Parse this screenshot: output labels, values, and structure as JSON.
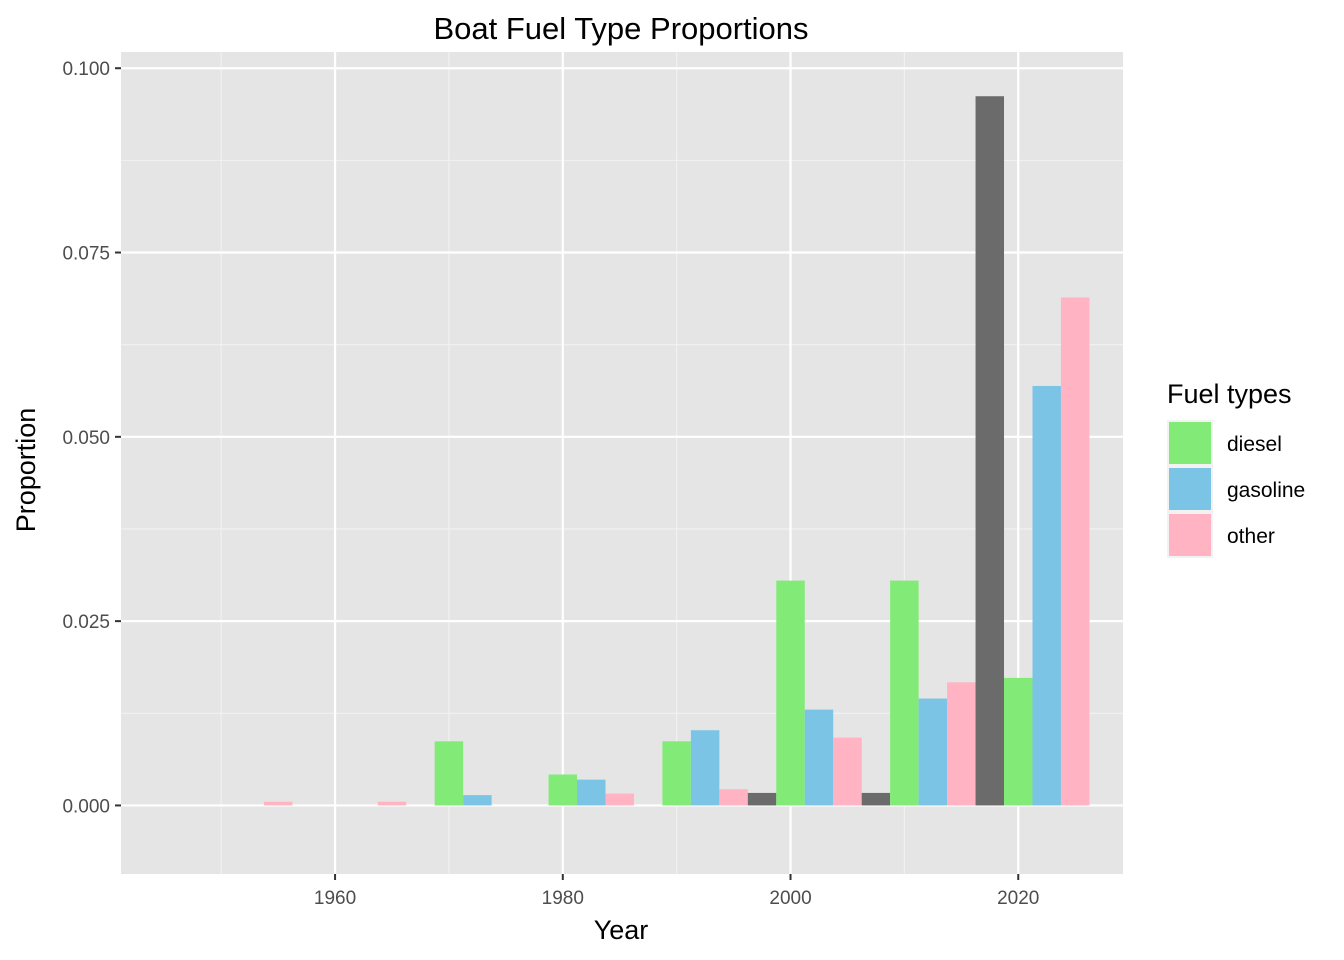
{
  "chart_data": {
    "type": "bar",
    "title": "Boat Fuel Type Proportions",
    "xlabel": "Year",
    "ylabel": "Proportion",
    "xlim": [
      1941.2,
      1929.2
    ],
    "ylim": [
      -0.0093,
      0.1022
    ],
    "x_ticks": [
      "1960",
      "1980",
      "2000",
      "2020"
    ],
    "x_tick_values": [
      1960,
      1980,
      2000,
      2020
    ],
    "y_ticks": [
      "0.000",
      "0.025",
      "0.050",
      "0.075",
      "0.100"
    ],
    "y_tick_values": [
      0,
      0.025,
      0.05,
      0.075,
      0.1
    ],
    "grid": true,
    "legend": {
      "title": "Fuel types",
      "position": "right",
      "entries": [
        {
          "label": "diesel",
          "color": "#82EB78"
        },
        {
          "label": "gasoline",
          "color": "#7BC4E5"
        },
        {
          "label": "other",
          "color": "#FFB3C3"
        }
      ]
    },
    "na_color": "#6B6B6B",
    "bars": [
      {
        "x": 1955.0,
        "value": 0.0005,
        "fuel": "other"
      },
      {
        "x": 1965.0,
        "value": 0.0005,
        "fuel": "other"
      },
      {
        "x": 1970.0,
        "value": 0.0087,
        "fuel": "diesel"
      },
      {
        "x": 1972.5,
        "value": 0.0014,
        "fuel": "gasoline"
      },
      {
        "x": 1980.0,
        "value": 0.0042,
        "fuel": "diesel"
      },
      {
        "x": 1982.5,
        "value": 0.0035,
        "fuel": "gasoline"
      },
      {
        "x": 1985.0,
        "value": 0.0016,
        "fuel": "other"
      },
      {
        "x": 1990.0,
        "value": 0.0087,
        "fuel": "diesel"
      },
      {
        "x": 1992.5,
        "value": 0.0102,
        "fuel": "gasoline"
      },
      {
        "x": 1995.0,
        "value": 0.0022,
        "fuel": "other"
      },
      {
        "x": 1997.5,
        "value": 0.0017,
        "fuel": "NA"
      },
      {
        "x": 2000.0,
        "value": 0.0305,
        "fuel": "diesel"
      },
      {
        "x": 2002.5,
        "value": 0.013,
        "fuel": "gasoline"
      },
      {
        "x": 2005.0,
        "value": 0.0092,
        "fuel": "other"
      },
      {
        "x": 2007.5,
        "value": 0.0017,
        "fuel": "NA"
      },
      {
        "x": 2010.0,
        "value": 0.0305,
        "fuel": "diesel"
      },
      {
        "x": 2012.5,
        "value": 0.0145,
        "fuel": "gasoline"
      },
      {
        "x": 2015.0,
        "value": 0.0167,
        "fuel": "other"
      },
      {
        "x": 2017.5,
        "value": 0.0962,
        "fuel": "NA"
      },
      {
        "x": 2020.0,
        "value": 0.0173,
        "fuel": "diesel"
      },
      {
        "x": 2022.5,
        "value": 0.0569,
        "fuel": "gasoline"
      },
      {
        "x": 2025.0,
        "value": 0.0689,
        "fuel": "other"
      }
    ]
  }
}
